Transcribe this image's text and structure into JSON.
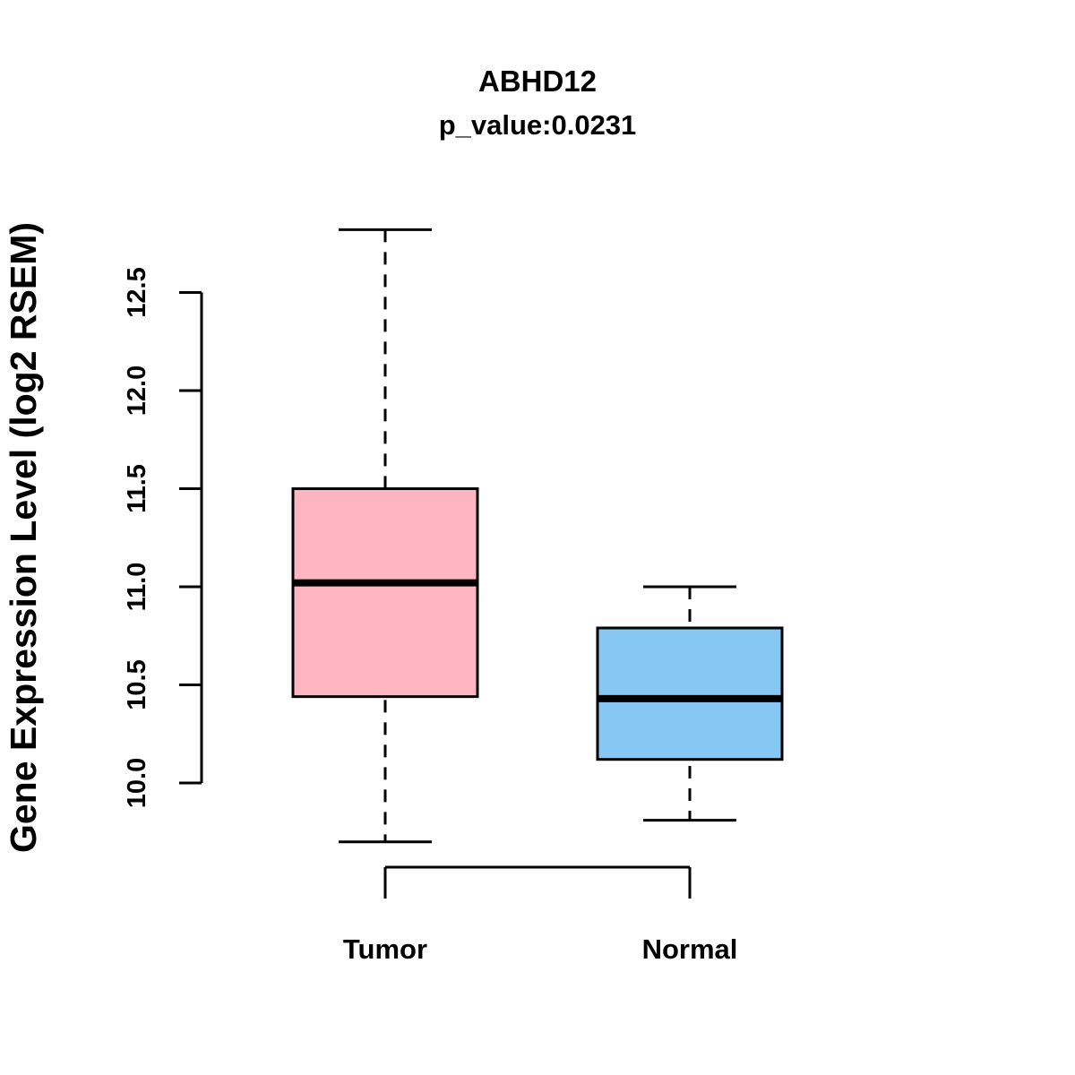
{
  "chart_data": {
    "type": "boxplot",
    "title": "ABHD12",
    "subtitle": "p_value:0.0231",
    "ylabel": "Gene Expression Level (log2 RSEM)",
    "categories": [
      "Tumor",
      "Normal"
    ],
    "yticks": [
      "10.0",
      "10.5",
      "11.0",
      "11.5",
      "12.0",
      "12.5"
    ],
    "ylim": [
      9.55,
      12.85
    ],
    "series": [
      {
        "name": "Tumor",
        "whisker_low": 9.7,
        "q1": 10.44,
        "median": 11.02,
        "q3": 11.5,
        "whisker_high": 12.82,
        "color": "#FFB6C1"
      },
      {
        "name": "Normal",
        "whisker_low": 9.81,
        "q1": 10.12,
        "median": 10.43,
        "q3": 10.79,
        "whisker_high": 11.0,
        "color": "#86C7F3"
      }
    ],
    "legend": "none",
    "grid": "off"
  }
}
